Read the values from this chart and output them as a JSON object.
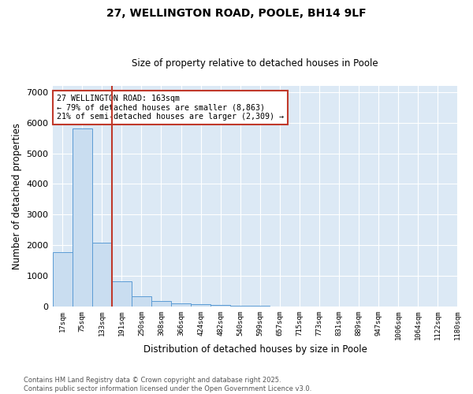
{
  "title_line1": "27, WELLINGTON ROAD, POOLE, BH14 9LF",
  "title_line2": "Size of property relative to detached houses in Poole",
  "xlabel": "Distribution of detached houses by size in Poole",
  "ylabel": "Number of detached properties",
  "bar_values": [
    1780,
    5800,
    2080,
    820,
    330,
    185,
    110,
    75,
    50,
    35,
    20,
    10,
    5,
    3,
    2,
    1,
    1,
    1,
    1,
    0
  ],
  "bar_labels": [
    "17sqm",
    "75sqm",
    "133sqm",
    "191sqm",
    "250sqm",
    "308sqm",
    "366sqm",
    "424sqm",
    "482sqm",
    "540sqm",
    "599sqm",
    "657sqm",
    "715sqm",
    "773sqm",
    "831sqm",
    "889sqm",
    "947sqm",
    "1006sqm",
    "1064sqm",
    "1122sqm",
    "1180sqm"
  ],
  "bar_color": "#c9ddf0",
  "bar_edge_color": "#5b9bd5",
  "vline_x": 2.5,
  "vline_color": "#c0392b",
  "annotation_title": "27 WELLINGTON ROAD: 163sqm",
  "annotation_line2": "← 79% of detached houses are smaller (8,863)",
  "annotation_line3": "21% of semi-detached houses are larger (2,309) →",
  "annotation_box_facecolor": "#ffffff",
  "annotation_box_edge": "#c0392b",
  "ylim": [
    0,
    7200
  ],
  "yticks": [
    0,
    1000,
    2000,
    3000,
    4000,
    5000,
    6000,
    7000
  ],
  "background_color": "#dce9f5",
  "grid_color": "#ffffff",
  "footer_line1": "Contains HM Land Registry data © Crown copyright and database right 2025.",
  "footer_line2": "Contains public sector information licensed under the Open Government Licence v3.0.",
  "fig_width": 6.0,
  "fig_height": 5.0,
  "dpi": 100
}
